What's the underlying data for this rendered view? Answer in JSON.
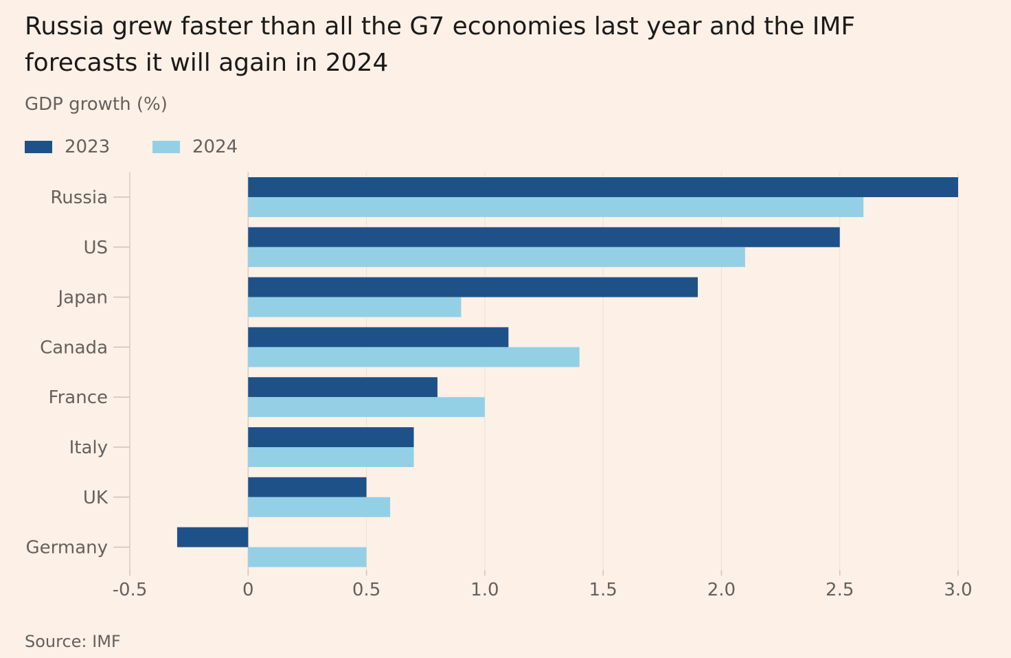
{
  "title": "Russia grew faster than all the G7 economies last year and the IMF forecasts it will again in 2024",
  "subtitle": "GDP growth (%)",
  "source": "Source: IMF",
  "legend": [
    {
      "label": "2023",
      "color": "#1f5189"
    },
    {
      "label": "2024",
      "color": "#93d0e6"
    }
  ],
  "chart_data": {
    "type": "bar",
    "orientation": "horizontal",
    "categories": [
      "Russia",
      "US",
      "Japan",
      "Canada",
      "France",
      "Italy",
      "UK",
      "Germany"
    ],
    "series": [
      {
        "name": "2023",
        "color": "#1f5189",
        "values": [
          3.0,
          2.5,
          1.9,
          1.1,
          0.8,
          0.7,
          0.5,
          -0.3
        ]
      },
      {
        "name": "2024",
        "color": "#93d0e6",
        "values": [
          2.6,
          2.1,
          0.9,
          1.4,
          1.0,
          0.7,
          0.6,
          0.5
        ]
      }
    ],
    "xlim": [
      -0.5,
      3.0
    ],
    "xticks": [
      -0.5,
      0,
      0.5,
      1.0,
      1.5,
      2.0,
      2.5,
      3.0
    ],
    "xtick_labels": [
      "-0.5",
      "0",
      "0.5",
      "1.0",
      "1.5",
      "2.0",
      "2.5",
      "3.0"
    ],
    "title": "Russia grew faster than all the G7 economies last year and the IMF forecasts it will again in 2024",
    "ylabel": "GDP growth (%)",
    "grid": true,
    "legend_position": "top-left"
  }
}
